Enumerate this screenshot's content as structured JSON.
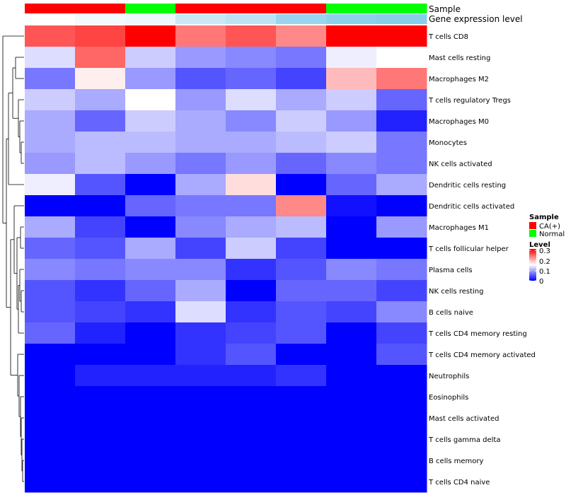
{
  "chart_data": {
    "type": "heatmap",
    "annotation_titles": {
      "sample": "Sample",
      "gene_expression": "Gene expression level"
    },
    "column_sample": [
      "CA(+)",
      "CA(+)",
      "Normal",
      "CA(+)",
      "CA(+)",
      "CA(+)",
      "Normal",
      "Normal"
    ],
    "column_gene_expression": [
      0.0,
      0.1,
      0.15,
      0.45,
      0.55,
      0.85,
      0.95,
      1.0
    ],
    "rows": [
      {
        "label": "T cells CD8",
        "values": [
          0.25,
          0.26,
          0.3,
          0.23,
          0.25,
          0.22,
          0.3,
          0.3
        ]
      },
      {
        "label": "Mast cells resting",
        "values": [
          0.13,
          0.24,
          0.12,
          0.09,
          0.08,
          0.07,
          0.14,
          0.15
        ]
      },
      {
        "label": "Macrophages M2",
        "values": [
          0.07,
          0.16,
          0.09,
          0.05,
          0.06,
          0.04,
          0.19,
          0.23
        ]
      },
      {
        "label": "T cells regulatory  Tregs",
        "values": [
          0.12,
          0.1,
          0.15,
          0.09,
          0.13,
          0.1,
          0.12,
          0.06
        ]
      },
      {
        "label": "Macrophages M0",
        "values": [
          0.1,
          0.06,
          0.12,
          0.1,
          0.08,
          0.12,
          0.09,
          0.02
        ]
      },
      {
        "label": "Monocytes",
        "values": [
          0.1,
          0.11,
          0.11,
          0.1,
          0.1,
          0.11,
          0.12,
          0.07
        ]
      },
      {
        "label": "NK cells activated",
        "values": [
          0.09,
          0.11,
          0.09,
          0.07,
          0.09,
          0.06,
          0.08,
          0.07
        ]
      },
      {
        "label": "Dendritic cells resting",
        "values": [
          0.14,
          0.05,
          0.0,
          0.1,
          0.17,
          0.0,
          0.06,
          0.1
        ]
      },
      {
        "label": "Dendritic cells activated",
        "values": [
          0.0,
          0.0,
          0.06,
          0.07,
          0.07,
          0.22,
          0.01,
          0.0
        ]
      },
      {
        "label": "Macrophages M1",
        "values": [
          0.1,
          0.04,
          0.0,
          0.08,
          0.1,
          0.11,
          0.0,
          0.09
        ]
      },
      {
        "label": "T cells follicular helper",
        "values": [
          0.06,
          0.05,
          0.1,
          0.04,
          0.12,
          0.04,
          0.0,
          0.0
        ]
      },
      {
        "label": "Plasma cells",
        "values": [
          0.08,
          0.07,
          0.08,
          0.08,
          0.03,
          0.05,
          0.08,
          0.07
        ]
      },
      {
        "label": "NK cells resting",
        "values": [
          0.05,
          0.03,
          0.06,
          0.1,
          0.0,
          0.06,
          0.06,
          0.04
        ]
      },
      {
        "label": "B cells naive",
        "values": [
          0.05,
          0.04,
          0.03,
          0.13,
          0.03,
          0.05,
          0.04,
          0.08
        ]
      },
      {
        "label": "T cells CD4 memory resting",
        "values": [
          0.06,
          0.02,
          0.0,
          0.03,
          0.04,
          0.05,
          0.0,
          0.04
        ]
      },
      {
        "label": "T cells CD4 memory activated",
        "values": [
          0.0,
          0.0,
          0.0,
          0.03,
          0.05,
          0.0,
          0.0,
          0.05
        ]
      },
      {
        "label": "Neutrophils",
        "values": [
          0.0,
          0.02,
          0.02,
          0.02,
          0.02,
          0.03,
          0.0,
          0.0
        ]
      },
      {
        "label": "Eosinophils",
        "values": [
          0.0,
          0.0,
          0.0,
          0.0,
          0.0,
          0.0,
          0.0,
          0.0
        ]
      },
      {
        "label": "Mast cells activated",
        "values": [
          0.0,
          0.0,
          0.0,
          0.0,
          0.0,
          0.0,
          0.0,
          0.0
        ]
      },
      {
        "label": "T cells gamma delta",
        "values": [
          0.0,
          0.0,
          0.0,
          0.0,
          0.0,
          0.0,
          0.0,
          0.0
        ]
      },
      {
        "label": "B cells memory",
        "values": [
          0.0,
          0.0,
          0.0,
          0.0,
          0.0,
          0.0,
          0.0,
          0.0
        ]
      },
      {
        "label": "T cells CD4 naive",
        "values": [
          0.0,
          0.0,
          0.0,
          0.0,
          0.0,
          0.0,
          0.0,
          0.0
        ]
      }
    ],
    "color_scale": {
      "low": "#0000FF",
      "mid": "#FFFFFF",
      "high": "#FF0000",
      "min": 0,
      "mid_value": 0.15,
      "max": 0.3
    },
    "legend": {
      "sample": {
        "title": "Sample",
        "items": [
          {
            "label": "CA(+)",
            "color": "#FF0000"
          },
          {
            "label": "Normal",
            "color": "#00FF00"
          }
        ]
      },
      "level": {
        "title": "Level",
        "ticks": [
          "0.3",
          "0.2",
          "0.1",
          "0"
        ],
        "tick_values": [
          0.3,
          0.2,
          0.1,
          0
        ]
      }
    },
    "gene_expression_colors": {
      "low": "#FFFFFF",
      "high": "#87CEEB"
    },
    "row_dendrogram": true
  }
}
